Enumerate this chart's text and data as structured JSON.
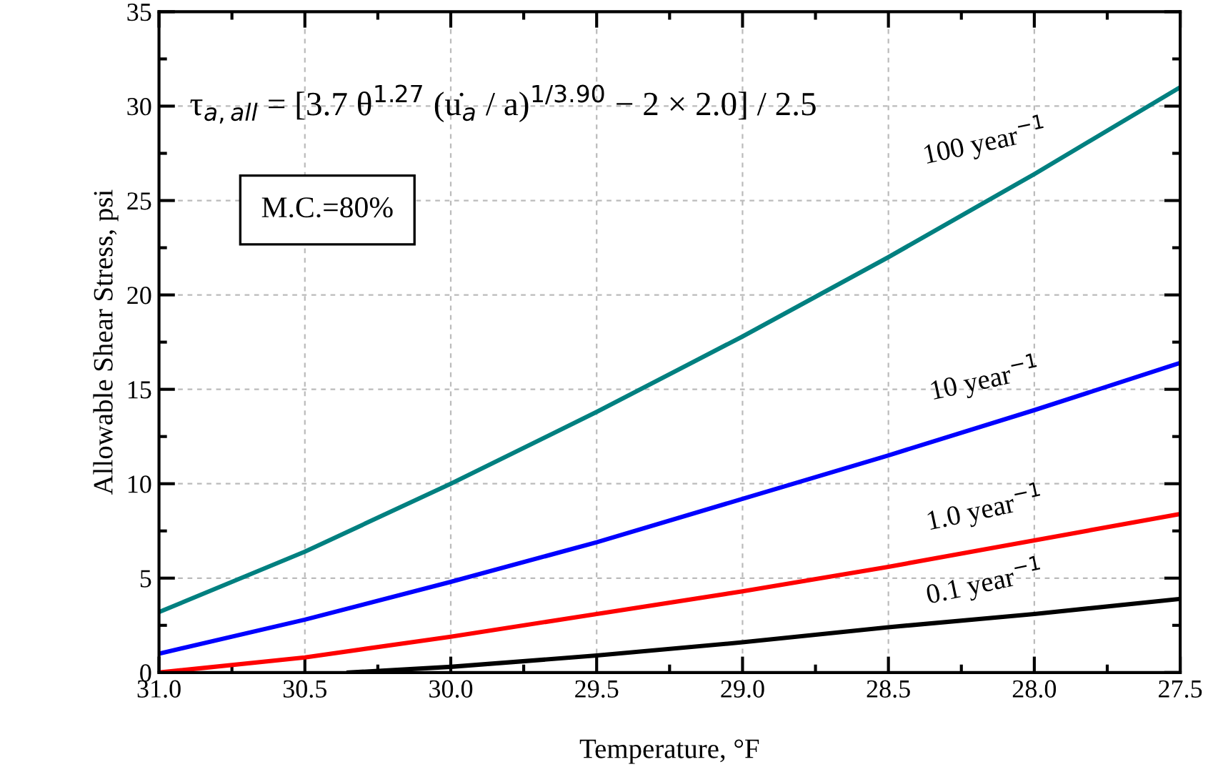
{
  "chart_data": {
    "type": "line",
    "xlabel": "Temperature, °F",
    "ylabel": "Allowable Shear Stress, psi",
    "xlim": [
      31.0,
      27.5
    ],
    "xticks": [
      {
        "value": 31.0,
        "label": "31.0"
      },
      {
        "value": 30.5,
        "label": "30.5"
      },
      {
        "value": 30.0,
        "label": "30.0"
      },
      {
        "value": 29.5,
        "label": "29.5"
      },
      {
        "value": 29.0,
        "label": "29.0"
      },
      {
        "value": 28.5,
        "label": "28.5"
      },
      {
        "value": 28.0,
        "label": "28.0"
      },
      {
        "value": 27.5,
        "label": "27.5"
      }
    ],
    "ylim": [
      0,
      35
    ],
    "yticks": [
      0,
      5,
      10,
      15,
      20,
      25,
      30,
      35
    ],
    "grid": true,
    "line_style": "solid",
    "marker": "none",
    "x": [
      31.0,
      30.5,
      30.0,
      29.5,
      29.0,
      28.5,
      28.0,
      27.5
    ],
    "series": [
      {
        "name": "100 year$^{−1}$",
        "color": "#008080",
        "values": [
          3.2,
          6.4,
          10.0,
          13.8,
          17.8,
          22.0,
          26.4,
          31.0
        ]
      },
      {
        "name": "10 year$^{−1}$",
        "color": "#0000ff",
        "values": [
          1.0,
          2.8,
          4.8,
          6.9,
          9.2,
          11.5,
          13.9,
          16.4
        ]
      },
      {
        "name": "1.0 year$^{−1}$",
        "color": "#ff0000",
        "values": [
          0.0,
          0.8,
          1.9,
          3.1,
          4.3,
          5.6,
          7.0,
          8.4
        ]
      },
      {
        "name": "0.1 year$^{−1}$",
        "color": "#000000",
        "x": [
          30.35,
          30.0,
          29.5,
          29.0,
          28.5,
          28.0,
          27.5
        ],
        "values": [
          0.0,
          0.3,
          0.9,
          1.6,
          2.4,
          3.1,
          3.9
        ]
      }
    ],
    "annotations": [
      "τ$_{a,all}$ = [3.7 θ$^{1.27}$ (u̇$_{a}$ / a)$^{1/3.90}$ − 2 × 2.0] / 2.5",
      "M.C.=80%"
    ]
  }
}
